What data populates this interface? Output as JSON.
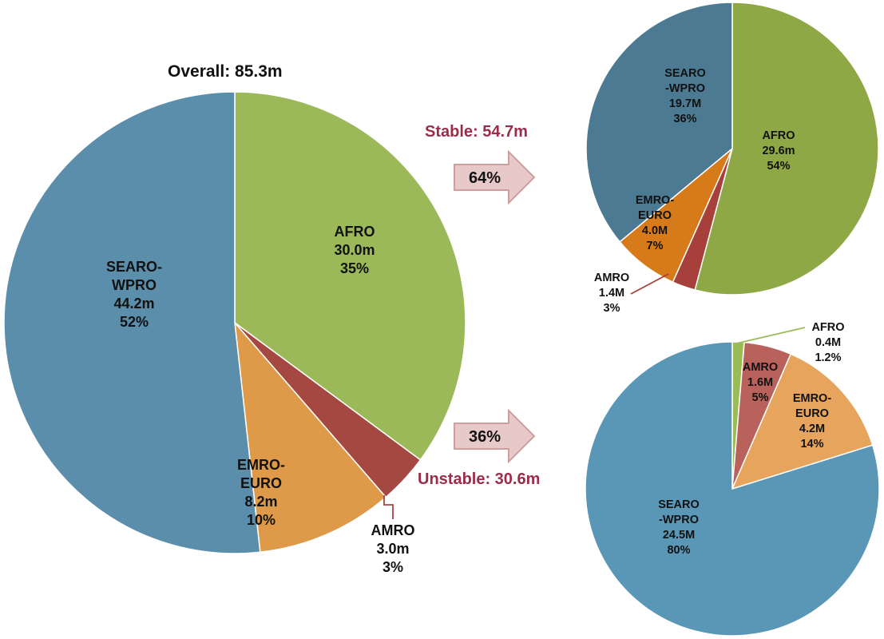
{
  "colors": {
    "seaorwpro_big": "#5b8eab",
    "afro_big": "#9cb95a",
    "emroeuro_big": "#de9a48",
    "amro_big": "#a54841",
    "seaorwpro_stable": "#4c7a93",
    "afro_stable": "#8da844",
    "emroeuro_stable": "#d67a1a",
    "amro_stable": "#a7403b",
    "seaorwpro_unstable": "#5a96b6",
    "afro_unstable": "#9bbb59",
    "emroeuro_unstable": "#e6a45c",
    "amro_unstable": "#b9625c",
    "accent_red": "#9b2c4a",
    "arrow_fill": "#e8c9c9",
    "arrow_stroke": "#cf9e9e"
  },
  "arrows": [
    {
      "label": "64%"
    },
    {
      "label": "36%"
    }
  ],
  "chart_data": [
    {
      "type": "pie",
      "title": "Overall: 85.3m",
      "slices": [
        {
          "lines": [
            "AFRO",
            "30.0m",
            "35%"
          ],
          "value": 30.0,
          "color_key": "afro_big"
        },
        {
          "lines": [
            "AMRO",
            "3.0m",
            "3%"
          ],
          "value": 3.0,
          "color_key": "amro_big"
        },
        {
          "lines": [
            "EMRO-",
            "EURO",
            "8.2m",
            "10%"
          ],
          "value": 8.2,
          "color_key": "emroeuro_big"
        },
        {
          "lines": [
            "SEARO-",
            "WPRO",
            "44.2m",
            "52%"
          ],
          "value": 44.2,
          "color_key": "seaorwpro_big"
        }
      ]
    },
    {
      "type": "pie",
      "title": "Stable: 54.7m",
      "slices": [
        {
          "lines": [
            "AFRO",
            "29.6m",
            "54%"
          ],
          "value": 29.6,
          "color_key": "afro_stable"
        },
        {
          "lines": [
            "AMRO",
            "1.4M",
            "3%"
          ],
          "value": 1.4,
          "color_key": "amro_stable"
        },
        {
          "lines": [
            "EMRO-",
            "EURO",
            "4.0M",
            "7%"
          ],
          "value": 4.0,
          "color_key": "emroeuro_stable"
        },
        {
          "lines": [
            "SEARO",
            "-WPRO",
            "19.7M",
            "36%"
          ],
          "value": 19.7,
          "color_key": "seaorwpro_stable"
        }
      ]
    },
    {
      "type": "pie",
      "title": "Unstable: 30.6m",
      "slices": [
        {
          "lines": [
            "AFRO",
            "0.4M",
            "1.2%"
          ],
          "value": 0.4,
          "color_key": "afro_unstable"
        },
        {
          "lines": [
            "AMRO",
            "1.6M",
            "5%"
          ],
          "value": 1.6,
          "color_key": "amro_unstable"
        },
        {
          "lines": [
            "EMRO-",
            "EURO",
            "4.2M",
            "14%"
          ],
          "value": 4.2,
          "color_key": "emroeuro_unstable"
        },
        {
          "lines": [
            "SEARO",
            "-WPRO",
            "24.5M",
            "80%"
          ],
          "value": 24.5,
          "color_key": "seaorwpro_unstable"
        }
      ]
    }
  ]
}
